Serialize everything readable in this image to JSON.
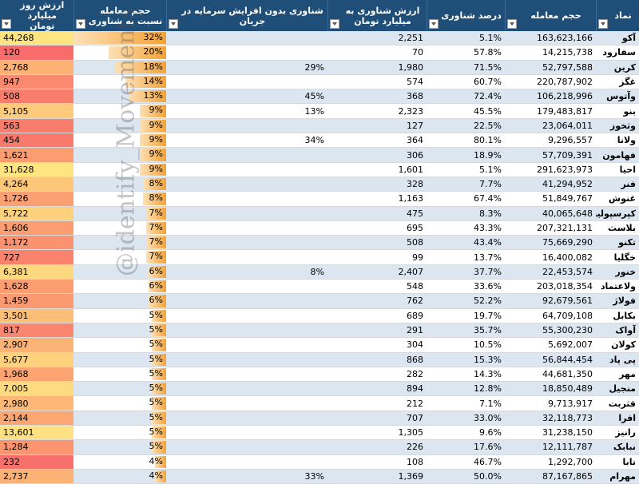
{
  "headers": {
    "nemad": "نماد",
    "hajm": "حجم معامله",
    "darsad": "درصد شناوری",
    "arzesh_shenavari": "ارزش شناوری به میلیارد تومان",
    "shenavari_bedun": "شناوری بدون افزایش سرمایه در جریان",
    "hajm_nesbat": "حجم معامله نسبت به شناوری",
    "arzesh_ruz": "ارزش روز میلیارد تومان"
  },
  "watermark": "@identify_Movements",
  "colors": {
    "header": "#1f4e79",
    "band": "#dce6f1",
    "bar": "#f4a236",
    "heat_high": "#f8696b",
    "heat_low": "#ffeb84"
  },
  "rows": [
    {
      "nemad": "آکو",
      "hajm": "163,623,166",
      "darsad": "5.1%",
      "arzesh_shenavari": "2,251",
      "shenavari_bedun": "",
      "hajm_nesbat": "32%",
      "ratio": 0.32,
      "arzesh_ruz": "44,268",
      "heat": 0.95
    },
    {
      "nemad": "سفارود",
      "hajm": "14,215,738",
      "darsad": "57.8%",
      "arzesh_shenavari": "70",
      "shenavari_bedun": "",
      "hajm_nesbat": "20%",
      "ratio": 0.2,
      "arzesh_ruz": "120",
      "heat": 0.02
    },
    {
      "nemad": "کرین",
      "hajm": "52,797,588",
      "darsad": "71.5%",
      "arzesh_shenavari": "1,980",
      "shenavari_bedun": "29%",
      "hajm_nesbat": "18%",
      "ratio": 0.18,
      "arzesh_ruz": "2,768",
      "heat": 0.55
    },
    {
      "nemad": "غگز",
      "hajm": "220,787,902",
      "darsad": "60.7%",
      "arzesh_shenavari": "574",
      "shenavari_bedun": "",
      "hajm_nesbat": "14%",
      "ratio": 0.14,
      "arzesh_ruz": "947",
      "heat": 0.25
    },
    {
      "nemad": "وآتوس",
      "hajm": "106,218,996",
      "darsad": "72.4%",
      "arzesh_shenavari": "368",
      "shenavari_bedun": "45%",
      "hajm_nesbat": "13%",
      "ratio": 0.13,
      "arzesh_ruz": "508",
      "heat": 0.15
    },
    {
      "nemad": "بنو",
      "hajm": "179,483,817",
      "darsad": "45.5%",
      "arzesh_shenavari": "2,323",
      "shenavari_bedun": "13%",
      "hajm_nesbat": "9%",
      "ratio": 0.09,
      "arzesh_ruz": "5,105",
      "heat": 0.75
    },
    {
      "nemad": "وثخوز",
      "hajm": "23,064,011",
      "darsad": "22.5%",
      "arzesh_shenavari": "127",
      "shenavari_bedun": "",
      "hajm_nesbat": "9%",
      "ratio": 0.09,
      "arzesh_ruz": "563",
      "heat": 0.15
    },
    {
      "nemad": "ولانا",
      "hajm": "9,296,557",
      "darsad": "80.1%",
      "arzesh_shenavari": "364",
      "shenavari_bedun": "34%",
      "hajm_nesbat": "9%",
      "ratio": 0.09,
      "arzesh_ruz": "454",
      "heat": 0.12
    },
    {
      "nemad": "فهامون",
      "hajm": "57,709,391",
      "darsad": "18.9%",
      "arzesh_shenavari": "306",
      "shenavari_bedun": "",
      "hajm_nesbat": "9%",
      "ratio": 0.09,
      "arzesh_ruz": "1,621",
      "heat": 0.4
    },
    {
      "nemad": "احیا",
      "hajm": "291,623,973",
      "darsad": "5.1%",
      "arzesh_shenavari": "1,601",
      "shenavari_bedun": "",
      "hajm_nesbat": "9%",
      "ratio": 0.09,
      "arzesh_ruz": "31,628",
      "heat": 0.95
    },
    {
      "nemad": "فنر",
      "hajm": "41,294,952",
      "darsad": "7.7%",
      "arzesh_shenavari": "328",
      "shenavari_bedun": "",
      "hajm_nesbat": "8%",
      "ratio": 0.08,
      "arzesh_ruz": "4,264",
      "heat": 0.72
    },
    {
      "nemad": "غنوش",
      "hajm": "51,849,767",
      "darsad": "67.4%",
      "arzesh_shenavari": "1,163",
      "shenavari_bedun": "",
      "hajm_nesbat": "8%",
      "ratio": 0.08,
      "arzesh_ruz": "1,726",
      "heat": 0.42
    },
    {
      "nemad": "کپرسپولیس",
      "hajm": "40,065,648",
      "darsad": "8.3%",
      "arzesh_shenavari": "475",
      "shenavari_bedun": "",
      "hajm_nesbat": "7%",
      "ratio": 0.07,
      "arzesh_ruz": "5,722",
      "heat": 0.8
    },
    {
      "nemad": "بلاسث",
      "hajm": "207,321,131",
      "darsad": "43.3%",
      "arzesh_shenavari": "695",
      "shenavari_bedun": "",
      "hajm_nesbat": "7%",
      "ratio": 0.07,
      "arzesh_ruz": "1,606",
      "heat": 0.4
    },
    {
      "nemad": "تکنو",
      "hajm": "75,669,290",
      "darsad": "43.4%",
      "arzesh_shenavari": "508",
      "shenavari_bedun": "",
      "hajm_nesbat": "7%",
      "ratio": 0.07,
      "arzesh_ruz": "1,172",
      "heat": 0.32
    },
    {
      "nemad": "خگلیا",
      "hajm": "16,400,082",
      "darsad": "13.7%",
      "arzesh_shenavari": "99",
      "shenavari_bedun": "",
      "hajm_nesbat": "7%",
      "ratio": 0.07,
      "arzesh_ruz": "727",
      "heat": 0.2
    },
    {
      "nemad": "خنور",
      "hajm": "22,453,574",
      "darsad": "37.7%",
      "arzesh_shenavari": "2,407",
      "shenavari_bedun": "8%",
      "hajm_nesbat": "6%",
      "ratio": 0.06,
      "arzesh_ruz": "6,381",
      "heat": 0.85
    },
    {
      "nemad": "ولاعتماد",
      "hajm": "203,018,354",
      "darsad": "33.6%",
      "arzesh_shenavari": "548",
      "shenavari_bedun": "",
      "hajm_nesbat": "6%",
      "ratio": 0.06,
      "arzesh_ruz": "1,628",
      "heat": 0.4
    },
    {
      "nemad": "فولاژ",
      "hajm": "92,679,561",
      "darsad": "52.2%",
      "arzesh_shenavari": "762",
      "shenavari_bedun": "",
      "hajm_nesbat": "6%",
      "ratio": 0.06,
      "arzesh_ruz": "1,459",
      "heat": 0.38
    },
    {
      "nemad": "بکابل",
      "hajm": "64,709,108",
      "darsad": "19.7%",
      "arzesh_shenavari": "689",
      "shenavari_bedun": "",
      "hajm_nesbat": "5%",
      "ratio": 0.05,
      "arzesh_ruz": "3,501",
      "heat": 0.65
    },
    {
      "nemad": "آواک",
      "hajm": "55,300,230",
      "darsad": "35.7%",
      "arzesh_shenavari": "291",
      "shenavari_bedun": "",
      "hajm_nesbat": "5%",
      "ratio": 0.05,
      "arzesh_ruz": "817",
      "heat": 0.22
    },
    {
      "nemad": "کولان",
      "hajm": "5,692,007",
      "darsad": "10.5%",
      "arzesh_shenavari": "304",
      "shenavari_bedun": "",
      "hajm_nesbat": "5%",
      "ratio": 0.05,
      "arzesh_ruz": "2,907",
      "heat": 0.58
    },
    {
      "nemad": "پی پاد",
      "hajm": "56,844,454",
      "darsad": "15.3%",
      "arzesh_shenavari": "868",
      "shenavari_bedun": "",
      "hajm_nesbat": "5%",
      "ratio": 0.05,
      "arzesh_ruz": "5,677",
      "heat": 0.8
    },
    {
      "nemad": "مهر",
      "hajm": "44,681,350",
      "darsad": "14.3%",
      "arzesh_shenavari": "282",
      "shenavari_bedun": "",
      "hajm_nesbat": "5%",
      "ratio": 0.05,
      "arzesh_ruz": "1,968",
      "heat": 0.45
    },
    {
      "nemad": "منجیل",
      "hajm": "18,850,489",
      "darsad": "12.8%",
      "arzesh_shenavari": "894",
      "shenavari_bedun": "",
      "hajm_nesbat": "5%",
      "ratio": 0.05,
      "arzesh_ruz": "7,005",
      "heat": 0.88
    },
    {
      "nemad": "قثربت",
      "hajm": "9,713,917",
      "darsad": "7.1%",
      "arzesh_shenavari": "212",
      "shenavari_bedun": "",
      "hajm_nesbat": "5%",
      "ratio": 0.05,
      "arzesh_ruz": "2,980",
      "heat": 0.6
    },
    {
      "nemad": "افرا",
      "hajm": "32,118,773",
      "darsad": "33.0%",
      "arzesh_shenavari": "707",
      "shenavari_bedun": "",
      "hajm_nesbat": "5%",
      "ratio": 0.05,
      "arzesh_ruz": "2,144",
      "heat": 0.48
    },
    {
      "nemad": "رانیز",
      "hajm": "31,238,150",
      "darsad": "9.6%",
      "arzesh_shenavari": "1,305",
      "shenavari_bedun": "",
      "hajm_nesbat": "5%",
      "ratio": 0.05,
      "arzesh_ruz": "13,601",
      "heat": 0.92
    },
    {
      "nemad": "نبابک",
      "hajm": "12,111,787",
      "darsad": "17.6%",
      "arzesh_shenavari": "226",
      "shenavari_bedun": "",
      "hajm_nesbat": "5%",
      "ratio": 0.05,
      "arzesh_ruz": "1,284",
      "heat": 0.34
    },
    {
      "nemad": "تابا",
      "hajm": "1,292,700",
      "darsad": "46.7%",
      "arzesh_shenavari": "108",
      "shenavari_bedun": "",
      "hajm_nesbat": "4%",
      "ratio": 0.04,
      "arzesh_ruz": "232",
      "heat": 0.05
    },
    {
      "nemad": "مهرام",
      "hajm": "87,167,865",
      "darsad": "50.0%",
      "arzesh_shenavari": "1,369",
      "shenavari_bedun": "33%",
      "hajm_nesbat": "4%",
      "ratio": 0.04,
      "arzesh_ruz": "2,737",
      "heat": 0.55
    }
  ]
}
